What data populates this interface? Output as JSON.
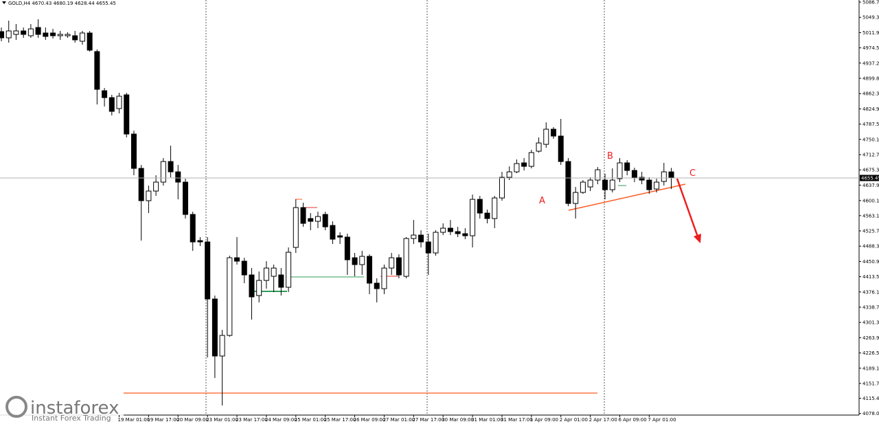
{
  "chart_data": {
    "type": "candlestick",
    "title": "GOLD,H4  4670.43 4680.19 4628.44 4655.45",
    "categories": [
      null,
      null,
      null,
      null,
      null,
      null,
      null,
      null,
      null,
      null,
      null,
      null,
      null,
      null,
      null,
      null,
      "19 Mar 01:00",
      null,
      null,
      null,
      "19 Mar 17:00",
      null,
      null,
      null,
      "20 Mar 09:00",
      null,
      null,
      null,
      "23 Mar 01:00",
      null,
      null,
      null,
      "23 Mar 17:00",
      null,
      null,
      null,
      "24 Mar 09:00",
      null,
      null,
      null,
      "25 Mar 01:00",
      null,
      null,
      null,
      "25 Mar 17:00",
      null,
      null,
      null,
      "26 Mar 09:00",
      null,
      null,
      null,
      "27 Mar 01:00",
      null,
      null,
      null,
      "27 Mar 17:00",
      null,
      null,
      null,
      "30 Mar 09:00",
      null,
      null,
      null,
      "31 Mar 01:00",
      null,
      null,
      null,
      "31 Mar 17:00",
      null,
      null,
      null,
      "1 Apr 09:00",
      null,
      null,
      null,
      "2 Apr 01:00",
      null,
      null,
      null,
      "2 Apr 17:00",
      null,
      null,
      null,
      "6 Apr 09:00",
      null,
      null,
      null,
      "7 Apr 01:00",
      null,
      null,
      null
    ],
    "open": [
      5014.3,
      4999.1,
      5007.5,
      5016,
      5004.2,
      5024.4,
      5010.9,
      5010.9,
      5004.2,
      5004.2,
      5004.2,
      4990.7,
      5010.9,
      4965.4,
      4869.4,
      4852.5,
      4825.6,
      4859.3,
      4763.2,
      4679,
      4599.8,
      4623.4,
      4645.3,
      4695.8,
      4670.5,
      4645.3,
      4566.1,
      4502,
      4498.7,
      4358.8,
      4219,
      4269.5,
      4459.9,
      4451.5,
      4417.8,
      4367.2,
      4404.3,
      4414.4,
      4417.8,
      4387.5,
      4485.2,
      4582.9,
      4556,
      4549.2,
      4566.1,
      4539.1,
      4513.8,
      4510.5,
      4459.9,
      4443.1,
      4463.3,
      4397.6,
      4384.1,
      4434.6,
      4459.9,
      4414.4,
      4507.1,
      4515.5,
      4498.7,
      4471.7,
      4522.3,
      4532.4,
      4524,
      4518.9,
      4513.8,
      4603.1,
      4569.4,
      4556,
      4606.5,
      4657.1,
      4670.5,
      4692.5,
      4684,
      4721.1,
      4737.9,
      4775,
      4758.2,
      4695.8,
      4593,
      4620,
      4633.5,
      4650.3,
      4650.3,
      4626.7,
      4653.7,
      4692.5,
      4673.9,
      4657.1,
      4650.3,
      4628.4,
      4647,
      4670.43
    ],
    "high": [
      5024.4,
      5041.2,
      5032.8,
      5024.4,
      5032.8,
      5044.6,
      5024.4,
      5021,
      5016,
      5012.6,
      5016,
      5016,
      5016,
      4970.5,
      4876.1,
      4859.3,
      4864.3,
      4864.3,
      4771.6,
      4687.4,
      4636.8,
      4662.1,
      4704.2,
      4734.6,
      4687.4,
      4653.7,
      4572.8,
      4510.5,
      4510.5,
      4367.2,
      4283,
      4465,
      4510.5,
      4459.9,
      4434.6,
      4426.2,
      4451.5,
      4443.1,
      4434.6,
      4485.2,
      4603.1,
      4594.7,
      4569.4,
      4572.8,
      4572.8,
      4549.2,
      4522.3,
      4518.9,
      4471.7,
      4476.8,
      4468.3,
      4409.4,
      4443.1,
      4471.7,
      4468.3,
      4510.5,
      4552.6,
      4527.3,
      4518.9,
      4527.3,
      4544.2,
      4552.6,
      4535.7,
      4532.4,
      4614.9,
      4611.6,
      4577.9,
      4611.6,
      4670.5,
      4684,
      4700.9,
      4704.2,
      4724.5,
      4754.8,
      4791.8,
      4780.1,
      4800.3,
      4704.2,
      4633.5,
      4650.3,
      4657.1,
      4682.3,
      4665.5,
      4679,
      4704.2,
      4699.2,
      4680.7,
      4670.5,
      4657.1,
      4653.7,
      4692.5,
      4680.19
    ],
    "low": [
      4990.7,
      4987.3,
      4994.1,
      4999.1,
      4999.1,
      4999.1,
      4994.1,
      4997.4,
      4994.1,
      4999.1,
      4987.3,
      4982.3,
      4965.4,
      4835.7,
      4830.6,
      4808.7,
      4813.8,
      4754.8,
      4662.1,
      4502,
      4569.4,
      4611.6,
      4636.8,
      4657.1,
      4603.1,
      4556,
      4476.8,
      4488.6,
      4215.6,
      4165,
      4097.6,
      4266.1,
      4443.1,
      4397.6,
      4308.3,
      4350.4,
      4384.1,
      4375.7,
      4367.2,
      4375.7,
      4471.7,
      4535.7,
      4527.3,
      4532.4,
      4527.3,
      4493.6,
      4493.6,
      4417.8,
      4414.4,
      4417.8,
      4370.6,
      4350.4,
      4370.6,
      4417.8,
      4409.4,
      4409.4,
      4493.6,
      4485.2,
      4417.8,
      4465,
      4515.5,
      4515.5,
      4510.5,
      4505.4,
      4485.2,
      4556,
      4544.2,
      4532.4,
      4599.8,
      4650.3,
      4667.2,
      4673.9,
      4679,
      4717.7,
      4729.5,
      4751.4,
      4687.4,
      4586.3,
      4556,
      4616.6,
      4623.4,
      4640.2,
      4603.1,
      4620,
      4645.3,
      4662.1,
      4645.3,
      4640.2,
      4616.6,
      4620,
      4636.8,
      4628.44
    ],
    "close": [
      4999.1,
      5016,
      5016,
      5007.5,
      5021,
      5007.5,
      5002.5,
      5004.2,
      5007.5,
      5007.5,
      4994.1,
      5010.9,
      4968.8,
      4872.8,
      4852.5,
      4818.8,
      4855.9,
      4763.2,
      4679,
      4599.8,
      4623.4,
      4645.3,
      4695.8,
      4670.5,
      4645.3,
      4566.1,
      4498.7,
      4498.7,
      4358.8,
      4219,
      4269.5,
      4459.9,
      4451.5,
      4417.8,
      4363.9,
      4404.3,
      4434.6,
      4434.6,
      4387.5,
      4473.4,
      4582.9,
      4544.2,
      4549.2,
      4561,
      4535.7,
      4505.4,
      4510.5,
      4454.9,
      4443.1,
      4463.3,
      4397.6,
      4384.1,
      4434.6,
      4459.9,
      4417.8,
      4507.1,
      4515.5,
      4498.7,
      4471.7,
      4522.3,
      4532.4,
      4524,
      4518.9,
      4513.8,
      4603.1,
      4569.4,
      4556,
      4606.5,
      4657.1,
      4670.5,
      4690.8,
      4684,
      4717.7,
      4741.3,
      4775,
      4758.2,
      4695.8,
      4593,
      4620,
      4645.3,
      4650.3,
      4675.6,
      4626.7,
      4650.3,
      4692.5,
      4673.9,
      4657.1,
      4650.3,
      4626.7,
      4645.3,
      4670.5,
      4655.45
    ],
    "up_color": "#ffffff",
    "down_color": "#000000",
    "ylim": [
      4074.2,
      5091.8
    ],
    "yticks": [
      {
        "value": 5086.7,
        "label": "5086.70"
      },
      {
        "value": 5049.3,
        "label": "5049.30"
      },
      {
        "value": 5011.9,
        "label": "5011.90"
      },
      {
        "value": 4974.5,
        "label": "4974.50"
      },
      {
        "value": 4937.2,
        "label": "4937.20"
      },
      {
        "value": 4899.8,
        "label": "4899.80"
      },
      {
        "value": 4862.3,
        "label": "4862.30"
      },
      {
        "value": 4824.9,
        "label": "4824.90"
      },
      {
        "value": 4787.5,
        "label": "4787.50"
      },
      {
        "value": 4750.1,
        "label": "4750.10"
      },
      {
        "value": 4712.7,
        "label": "4712.70"
      },
      {
        "value": 4675.3,
        "label": "4675.30"
      },
      {
        "value": 4637.9,
        "label": "4637.90"
      },
      {
        "value": 4600.1,
        "label": "4600.10"
      },
      {
        "value": 4563.1,
        "label": "4563.10"
      },
      {
        "value": 4525.7,
        "label": "4525.70"
      },
      {
        "value": 4488.3,
        "label": "4488.30"
      },
      {
        "value": 4450.9,
        "label": "4450.90"
      },
      {
        "value": 4413.5,
        "label": "4413.50"
      },
      {
        "value": 4376.1,
        "label": "4376.10"
      },
      {
        "value": 4338.7,
        "label": "4338.70"
      },
      {
        "value": 4301.3,
        "label": "4301.30"
      },
      {
        "value": 4263.9,
        "label": "4263.90"
      },
      {
        "value": 4226.5,
        "label": "4226.50"
      },
      {
        "value": 4189.1,
        "label": "4189.10"
      },
      {
        "value": 4151.7,
        "label": "4151.70"
      },
      {
        "value": 4115.4,
        "label": "4115.40"
      },
      {
        "value": 4078,
        "label": "4078.00"
      }
    ],
    "annotations": [
      "A",
      "B",
      "C"
    ],
    "watermark": {
      "brand": "instaforex",
      "tagline": "Instant Forex Trading"
    }
  }
}
